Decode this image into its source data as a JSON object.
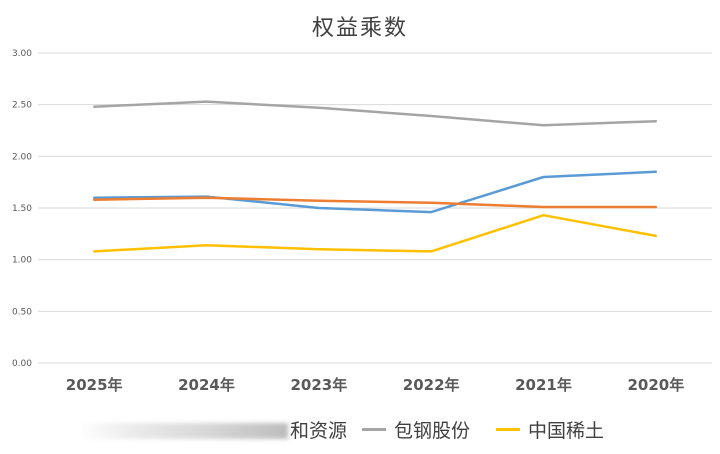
{
  "chart_data": {
    "type": "line",
    "title": "权益乘数",
    "categories": [
      "2025年",
      "2024年",
      "2023年",
      "2022年",
      "2021年",
      "2020年"
    ],
    "ylim": [
      0,
      3
    ],
    "yticks": [
      "0.00",
      "0.50",
      "1.00",
      "1.50",
      "2.00",
      "2.50",
      "3.00"
    ],
    "grid": true,
    "legend_position": "bottom",
    "series": [
      {
        "legend_label": "和资源",
        "color": "#5b9bd5",
        "values": [
          1.6,
          1.61,
          1.5,
          1.46,
          1.8,
          1.85
        ]
      },
      {
        "legend_label": "",
        "color": "#ed7d31",
        "values": [
          1.58,
          1.6,
          1.57,
          1.55,
          1.51,
          1.51
        ]
      },
      {
        "legend_label": "包钢股份",
        "color": "#a5a5a5",
        "values": [
          2.48,
          2.53,
          2.47,
          2.39,
          2.3,
          2.34
        ]
      },
      {
        "legend_label": "中国稀土",
        "color": "#ffc000",
        "values": [
          1.08,
          1.14,
          1.1,
          1.08,
          1.43,
          1.23
        ]
      }
    ]
  }
}
